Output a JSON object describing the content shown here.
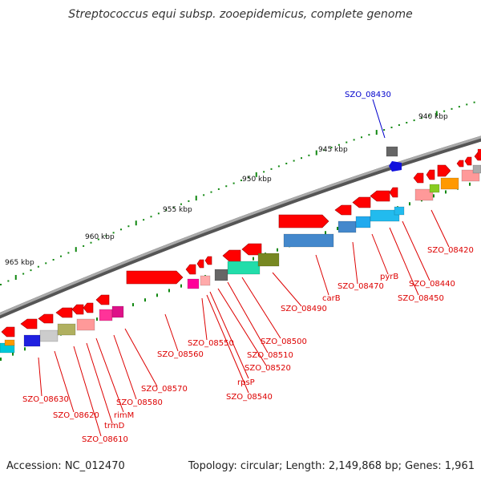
{
  "title": "Streptococcus equi subsp. zooepidemicus, complete genome",
  "footer": {
    "accession": "Accession: NC_012470",
    "summary": "Topology: circular; Length: 2,149,868 bp; Genes: 1,961"
  },
  "colors": {
    "backbone": "#777777",
    "tick": "#118811",
    "gene_default": "#ff0000",
    "label_red": "#dd0000",
    "label_blue": "#0000cc"
  },
  "scale_labels": [
    "940 kbp",
    "945 kbp",
    "950 kbp",
    "955 kbp",
    "960 kbp",
    "965 kbp"
  ],
  "gene_labels": [
    {
      "text": "SZO_08430",
      "color": "blue"
    },
    {
      "text": "SZO_08420",
      "color": "red"
    },
    {
      "text": "SZO_08440",
      "color": "red"
    },
    {
      "text": "SZO_08450",
      "color": "red"
    },
    {
      "text": "pyrB",
      "color": "red"
    },
    {
      "text": "SZO_08470",
      "color": "red"
    },
    {
      "text": "carB",
      "color": "red"
    },
    {
      "text": "SZO_08490",
      "color": "red"
    },
    {
      "text": "SZO_08500",
      "color": "red"
    },
    {
      "text": "SZO_08510",
      "color": "red"
    },
    {
      "text": "SZO_08520",
      "color": "red"
    },
    {
      "text": "rpsP",
      "color": "red"
    },
    {
      "text": "SZO_08540",
      "color": "red"
    },
    {
      "text": "SZO_08550",
      "color": "red"
    },
    {
      "text": "SZO_08560",
      "color": "red"
    },
    {
      "text": "SZO_08570",
      "color": "red"
    },
    {
      "text": "SZO_08580",
      "color": "red"
    },
    {
      "text": "rimM",
      "color": "red"
    },
    {
      "text": "trmD",
      "color": "red"
    },
    {
      "text": "SZO_08610",
      "color": "red"
    },
    {
      "text": "SZO_08620",
      "color": "red"
    },
    {
      "text": "SZO_08630",
      "color": "red"
    }
  ]
}
